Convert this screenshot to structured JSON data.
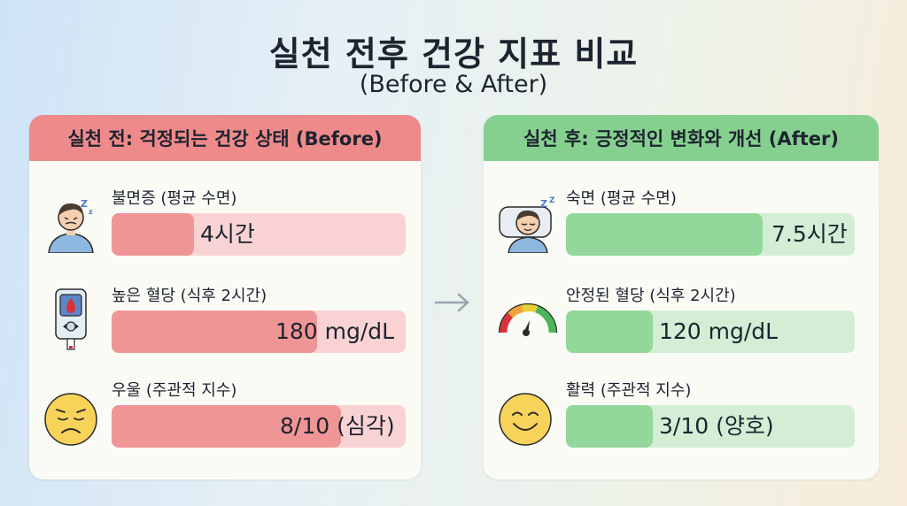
{
  "title": "실천 전후 건강 지표 비교",
  "subtitle": "(Before & After)",
  "before": {
    "header": "실천 전: 걱정되는 건강 상태 (Before)",
    "color": "#ee8a8a",
    "metrics": [
      {
        "label": "불면증 (평균 수면)",
        "value": "4시간",
        "fill_fraction": 0.28,
        "icon": "sleepless-person-icon"
      },
      {
        "label": "높은 혈당 (식후 2시간)",
        "value": "180 mg/dL",
        "fill_fraction": 0.7,
        "icon": "glucose-meter-icon"
      },
      {
        "label": "우울 (주관적 지수)",
        "value": "8/10 (심각)",
        "fill_fraction": 0.78,
        "icon": "sad-face-icon"
      }
    ]
  },
  "after": {
    "header": "실천 후: 긍정적인 변화와 개선 (After)",
    "color": "#86d08f",
    "metrics": [
      {
        "label": "숙면 (평균 수면)",
        "value": "7.5시간",
        "fill_fraction": 0.68,
        "icon": "sleeping-person-icon"
      },
      {
        "label": "안정된 혈당 (식후 2시간)",
        "value": "120 mg/dL",
        "fill_fraction": 0.3,
        "icon": "gauge-icon"
      },
      {
        "label": "활력 (주관적 지수)",
        "value": "3/10 (양호)",
        "fill_fraction": 0.3,
        "icon": "smiling-face-icon"
      }
    ]
  },
  "arrow_icon": "right-arrow-icon"
}
